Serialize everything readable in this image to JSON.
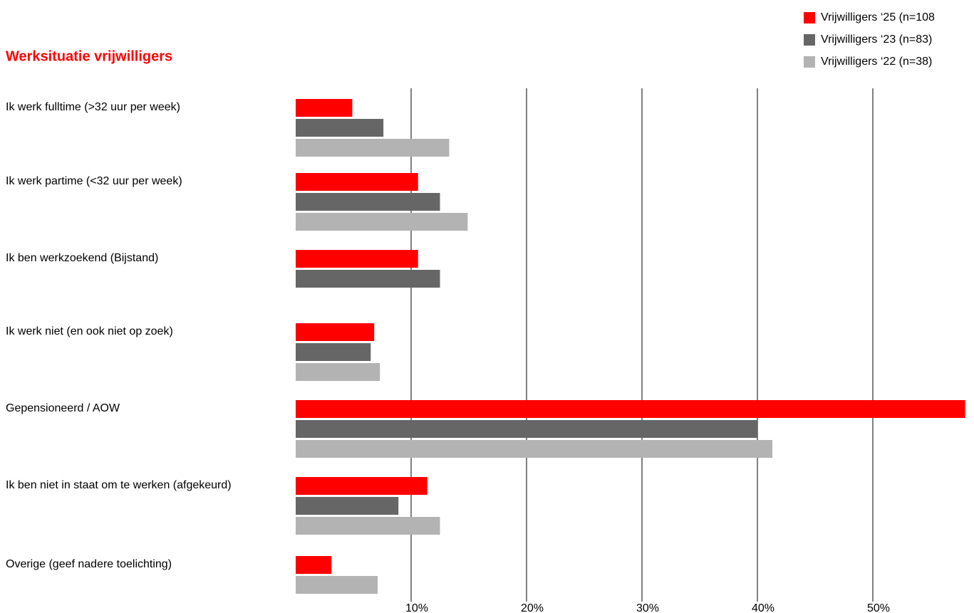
{
  "chart_data": {
    "type": "bar",
    "orientation": "horizontal",
    "title": "Werksituatie vrijwilligers",
    "categories": [
      "Ik werk fulltime (>32 uur per week)",
      "Ik werk partime (<32 uur per week)",
      "Ik ben werkzoekend (Bijstand)",
      "Ik werk niet (en ook niet op zoek)",
      "Gepensioneerd / AOW",
      "Ik ben niet in staat om te werken (afgekeurd)",
      "Overige (geef nadere toelichting)"
    ],
    "series": [
      {
        "name": "Vrijwilligers ‘25 (n=108",
        "color": "#ff0000",
        "values": [
          4.9,
          10.6,
          10.6,
          6.8,
          58.0,
          11.4,
          3.1
        ]
      },
      {
        "name": "Vrijwilligers ‘23 (n=83)",
        "color": "#666666",
        "values": [
          7.6,
          12.5,
          12.5,
          6.5,
          40.0,
          8.9,
          null
        ]
      },
      {
        "name": "Vrijwilligers ‘22 (n=38)",
        "color": "#b3b3b3",
        "values": [
          13.3,
          14.9,
          null,
          7.3,
          41.3,
          12.5,
          7.1
        ]
      }
    ],
    "xlim": [
      0,
      58
    ],
    "xticks": [
      {
        "value": 10,
        "label": "10%"
      },
      {
        "value": 20,
        "label": "20%"
      },
      {
        "value": 30,
        "label": "30%"
      },
      {
        "value": 40,
        "label": "40%"
      },
      {
        "value": 50,
        "label": "50%"
      }
    ],
    "grid": true,
    "legend": "top-right"
  }
}
